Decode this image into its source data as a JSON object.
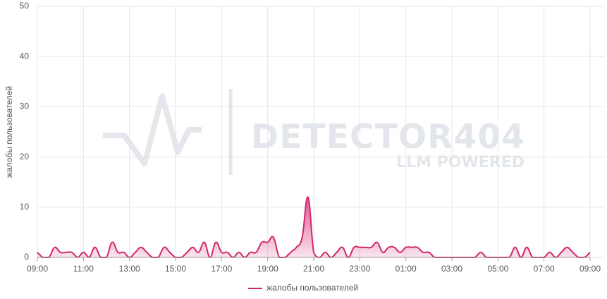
{
  "chart_data": {
    "type": "area",
    "y_label": "жалобы пользователей",
    "x": [
      9,
      9.25,
      9.5,
      9.75,
      10,
      10.25,
      10.5,
      10.75,
      11,
      11.25,
      11.5,
      11.75,
      12,
      12.25,
      12.5,
      12.75,
      13,
      13.25,
      13.5,
      13.75,
      14,
      14.25,
      14.5,
      14.75,
      15,
      15.25,
      15.5,
      15.75,
      16,
      16.25,
      16.5,
      16.75,
      17,
      17.25,
      17.5,
      17.75,
      18,
      18.25,
      18.5,
      18.75,
      19,
      19.25,
      19.5,
      19.75,
      20,
      20.25,
      20.5,
      20.75,
      21,
      21.25,
      21.5,
      21.75,
      22,
      22.25,
      22.5,
      22.75,
      23,
      23.25,
      23.5,
      23.75,
      24,
      24.25,
      24.5,
      24.75,
      25,
      25.25,
      25.5,
      25.75,
      26,
      26.25,
      26.5,
      26.75,
      27,
      27.25,
      27.5,
      27.75,
      28,
      28.25,
      28.5,
      28.75,
      29,
      29.25,
      29.5,
      29.75,
      30,
      30.25,
      30.5,
      30.75,
      31,
      31.25,
      31.5,
      31.75,
      32,
      32.25,
      32.5,
      32.75,
      33
    ],
    "series": [
      {
        "name": "жалобы пользователей",
        "color": "#d1266b",
        "values": [
          1,
          0,
          0,
          2,
          1,
          1,
          1,
          0,
          1,
          0,
          2,
          0,
          0,
          3,
          1,
          1,
          0,
          1,
          2,
          1,
          0,
          0,
          2,
          1,
          0,
          0,
          1,
          2,
          1,
          3,
          0,
          3,
          1,
          1,
          0,
          1,
          0,
          1,
          1,
          3,
          3,
          4,
          0,
          0,
          1,
          2,
          4,
          12,
          1,
          0,
          1,
          0,
          1,
          2,
          0,
          2,
          2,
          2,
          2,
          3,
          1,
          2,
          2,
          1,
          2,
          2,
          2,
          1,
          1,
          0,
          0,
          0,
          0,
          0,
          0,
          0,
          0,
          1,
          0,
          0,
          0,
          0,
          0,
          2,
          0,
          2,
          0,
          0,
          0,
          1,
          0,
          1,
          2,
          1,
          0,
          0,
          1
        ]
      }
    ],
    "xlim": [
      9,
      33
    ],
    "xticks": [
      {
        "value": 9,
        "label": "09:00"
      },
      {
        "value": 11,
        "label": "11:00"
      },
      {
        "value": 13,
        "label": "13:00"
      },
      {
        "value": 15,
        "label": "15:00"
      },
      {
        "value": 17,
        "label": "17:00"
      },
      {
        "value": 19,
        "label": "19:00"
      },
      {
        "value": 21,
        "label": "21:00"
      },
      {
        "value": 23,
        "label": "23:00"
      },
      {
        "value": 25,
        "label": "01:00"
      },
      {
        "value": 27,
        "label": "03:00"
      },
      {
        "value": 29,
        "label": "05:00"
      },
      {
        "value": 31,
        "label": "07:00"
      },
      {
        "value": 33,
        "label": "09:00"
      }
    ],
    "ylim": [
      0,
      50
    ],
    "yticks": [
      0,
      10,
      20,
      30,
      40,
      50
    ],
    "grid": true
  },
  "watermark": {
    "name": "DETECTOR404",
    "tagline": "LLM POWERED"
  }
}
